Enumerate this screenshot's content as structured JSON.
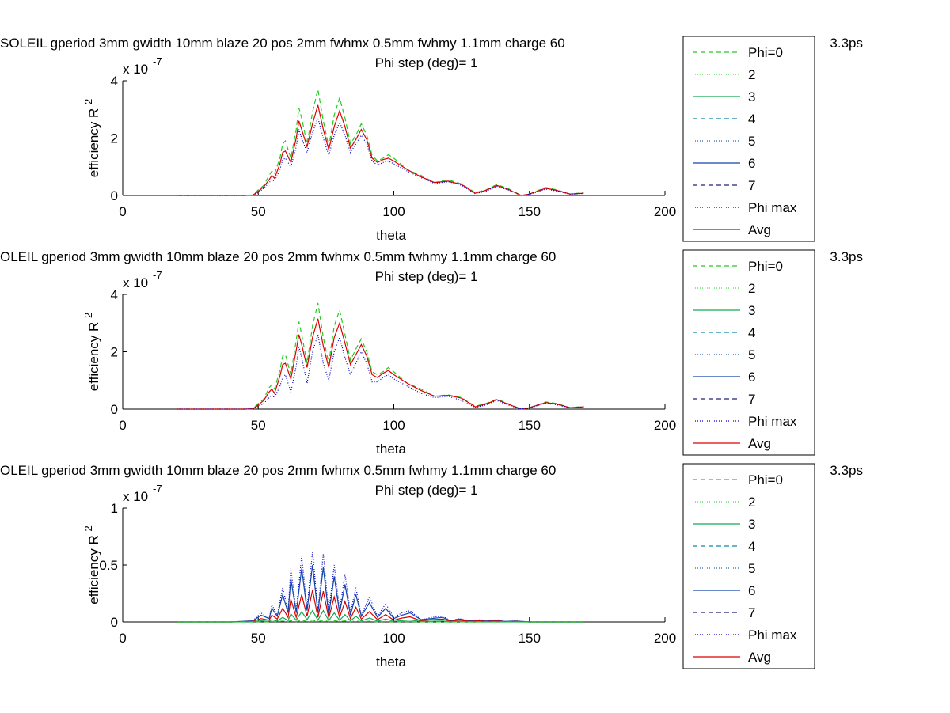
{
  "figure": {
    "background": "#ffffff",
    "series_styles": [
      {
        "name": "Phi=0",
        "color": "#22cc22",
        "dash": "6,4"
      },
      {
        "name": "2",
        "color": "#44dd44",
        "dash": "1,2"
      },
      {
        "name": "3",
        "color": "#11aa55",
        "dash": ""
      },
      {
        "name": "4",
        "color": "#1188aa",
        "dash": "6,4"
      },
      {
        "name": "5",
        "color": "#2266bb",
        "dash": "1,2"
      },
      {
        "name": "6",
        "color": "#1144aa",
        "dash": ""
      },
      {
        "name": "7",
        "color": "#222277",
        "dash": "6,4"
      },
      {
        "name": "Phi max",
        "color": "#0000cc",
        "dash": "1,2"
      },
      {
        "name": "Avg",
        "color": "#dd0000",
        "dash": ""
      }
    ]
  },
  "chart_data": [
    {
      "type": "line",
      "title": "SOLEIL gperiod 3mm gwidth 10mm blaze 20 pos 2mm fwhmx 0.5mm fwhmy 1.1mm charge 60",
      "title_tail": "3.3ps",
      "subtitle": "Phi step (deg)= 1",
      "xlabel": "theta",
      "ylabel": "efficiency R",
      "ylabel_sup": "2",
      "multiplier": "x 10",
      "multiplier_exp": "-7",
      "xlim": [
        0,
        200
      ],
      "ylim": [
        0,
        4
      ],
      "xticks": [
        "0",
        "50",
        "100",
        "150",
        "200"
      ],
      "yticks": [
        "0",
        "2",
        "4"
      ],
      "ytick_values": [
        0,
        2,
        4
      ],
      "legend": [
        "Phi=0",
        "2",
        "3",
        "4",
        "5",
        "6",
        "7",
        "Phi max",
        "Avg"
      ],
      "legend_position": "right",
      "grid": false,
      "theta": [
        20,
        30,
        40,
        45,
        48,
        50,
        52,
        54,
        55,
        56,
        58,
        59,
        60,
        62,
        64,
        65,
        66,
        68,
        70,
        72,
        74,
        76,
        78,
        80,
        82,
        84,
        86,
        88,
        90,
        92,
        94,
        96,
        98,
        100,
        105,
        110,
        115,
        120,
        125,
        130,
        134,
        138,
        142,
        147,
        150,
        156,
        160,
        165,
        170
      ],
      "series": [
        {
          "name": "Phi=0",
          "values": [
            0,
            0,
            0,
            0,
            0.02,
            0.2,
            0.35,
            0.7,
            0.85,
            0.75,
            1.3,
            1.8,
            1.9,
            1.3,
            2.3,
            3.05,
            2.7,
            1.8,
            2.9,
            3.7,
            2.6,
            1.7,
            2.8,
            3.4,
            2.7,
            1.8,
            2.1,
            2.5,
            2.1,
            1.4,
            1.2,
            1.3,
            1.42,
            1.3,
            0.9,
            0.7,
            0.45,
            0.55,
            0.4,
            0.1,
            0.2,
            0.38,
            0.25,
            0,
            0.05,
            0.28,
            0.2,
            0.05,
            0.1
          ]
        },
        {
          "name": "Avg",
          "values": [
            0,
            0,
            0,
            0,
            0.01,
            0.15,
            0.3,
            0.55,
            0.7,
            0.6,
            1.1,
            1.5,
            1.55,
            1.15,
            2.0,
            2.6,
            2.3,
            1.7,
            2.5,
            3.15,
            2.3,
            1.6,
            2.4,
            2.95,
            2.4,
            1.65,
            1.95,
            2.3,
            1.95,
            1.3,
            1.15,
            1.25,
            1.3,
            1.2,
            0.9,
            0.65,
            0.45,
            0.5,
            0.38,
            0.08,
            0.18,
            0.35,
            0.22,
            0,
            0.05,
            0.25,
            0.18,
            0.05,
            0.08
          ]
        },
        {
          "name": "Phi max",
          "values": [
            0,
            0,
            0,
            0,
            0.01,
            0.1,
            0.25,
            0.45,
            0.55,
            0.5,
            0.9,
            1.25,
            1.3,
            1.0,
            1.7,
            2.3,
            2.0,
            1.5,
            2.2,
            2.7,
            2.0,
            1.4,
            2.1,
            2.55,
            2.1,
            1.5,
            1.8,
            2.1,
            1.8,
            1.2,
            1.05,
            1.15,
            1.2,
            1.1,
            0.85,
            0.62,
            0.42,
            0.48,
            0.35,
            0.06,
            0.15,
            0.32,
            0.2,
            0,
            0.04,
            0.22,
            0.16,
            0.04,
            0.07
          ]
        }
      ]
    },
    {
      "type": "line",
      "title": "OLEIL gperiod 3mm gwidth 10mm blaze 20 pos 2mm fwhmx 0.5mm fwhmy 1.1mm charge 60",
      "title_tail": "3.3ps",
      "subtitle": "Phi step (deg)= 1",
      "xlabel": "theta",
      "ylabel": "efficiency R",
      "ylabel_sup": "2",
      "multiplier": "x 10",
      "multiplier_exp": "-7",
      "xlim": [
        0,
        200
      ],
      "ylim": [
        0,
        4
      ],
      "xticks": [
        "0",
        "50",
        "100",
        "150",
        "200"
      ],
      "yticks": [
        "0",
        "2",
        "4"
      ],
      "ytick_values": [
        0,
        2,
        4
      ],
      "legend": [
        "Phi=0",
        "2",
        "3",
        "4",
        "5",
        "6",
        "7",
        "Phi max",
        "Avg"
      ],
      "legend_position": "right",
      "grid": false,
      "theta": [
        20,
        30,
        40,
        45,
        48,
        50,
        52,
        54,
        55,
        56,
        58,
        59,
        60,
        62,
        64,
        65,
        66,
        68,
        70,
        72,
        74,
        76,
        78,
        80,
        82,
        84,
        86,
        88,
        90,
        92,
        94,
        96,
        98,
        100,
        105,
        110,
        115,
        120,
        125,
        130,
        134,
        138,
        142,
        147,
        150,
        156,
        160,
        165,
        170
      ],
      "series": [
        {
          "name": "Phi=0",
          "values": [
            0,
            0,
            0,
            0,
            0.02,
            0.2,
            0.35,
            0.75,
            0.85,
            0.7,
            1.35,
            1.85,
            1.9,
            1.2,
            2.4,
            3.05,
            2.6,
            1.6,
            2.9,
            3.7,
            2.5,
            1.6,
            2.9,
            3.45,
            2.6,
            1.7,
            2.1,
            2.45,
            2.0,
            1.3,
            1.2,
            1.3,
            1.45,
            1.3,
            0.9,
            0.7,
            0.45,
            0.5,
            0.4,
            0.1,
            0.2,
            0.35,
            0.2,
            0,
            0.05,
            0.25,
            0.2,
            0.05,
            0.1
          ]
        },
        {
          "name": "Avg",
          "values": [
            0,
            0,
            0,
            0,
            0.01,
            0.15,
            0.3,
            0.6,
            0.7,
            0.55,
            1.15,
            1.55,
            1.6,
            1.05,
            2.05,
            2.6,
            2.25,
            1.45,
            2.5,
            3.15,
            2.2,
            1.45,
            2.5,
            3.0,
            2.3,
            1.55,
            1.9,
            2.25,
            1.85,
            1.2,
            1.1,
            1.25,
            1.35,
            1.2,
            0.9,
            0.65,
            0.45,
            0.48,
            0.38,
            0.08,
            0.18,
            0.33,
            0.18,
            0,
            0.05,
            0.23,
            0.18,
            0.05,
            0.08
          ]
        },
        {
          "name": "Phi max",
          "values": [
            0,
            0,
            0,
            0,
            0.01,
            0.1,
            0.2,
            0.4,
            0.5,
            0.4,
            0.8,
            1.1,
            1.2,
            0.6,
            1.5,
            2.2,
            1.8,
            0.9,
            2.0,
            2.6,
            1.6,
            1.0,
            2.0,
            2.5,
            1.8,
            1.2,
            1.6,
            2.0,
            1.6,
            0.95,
            0.95,
            1.1,
            1.2,
            1.05,
            0.8,
            0.55,
            0.4,
            0.45,
            0.3,
            0.05,
            0.15,
            0.3,
            0.15,
            0,
            0.04,
            0.2,
            0.15,
            0.04,
            0.07
          ]
        }
      ]
    },
    {
      "type": "line",
      "title": "OLEIL gperiod 3mm gwidth 10mm blaze 20 pos 2mm fwhmx 0.5mm fwhmy 1.1mm charge 60",
      "title_tail": "3.3ps",
      "subtitle": "Phi step (deg)= 1",
      "xlabel": "theta",
      "ylabel": "efficiency R",
      "ylabel_sup": "2",
      "multiplier": "x 10",
      "multiplier_exp": "-7",
      "xlim": [
        0,
        200
      ],
      "ylim": [
        0,
        1
      ],
      "xticks": [
        "0",
        "50",
        "100",
        "150",
        "200"
      ],
      "yticks": [
        "0",
        "0.5",
        "1"
      ],
      "ytick_values": [
        0,
        0.5,
        1
      ],
      "legend": [
        "Phi=0",
        "2",
        "3",
        "4",
        "5",
        "6",
        "7",
        "Phi max",
        "Avg"
      ],
      "legend_position": "right",
      "grid": false,
      "theta": [
        20,
        40,
        48,
        51,
        54,
        55,
        57,
        59,
        61,
        62,
        64,
        66,
        68,
        70,
        72,
        74,
        76,
        78,
        80,
        82,
        84,
        86,
        88,
        91,
        94,
        97,
        100,
        103,
        106,
        110,
        114,
        118,
        121,
        124,
        128,
        131,
        134,
        138,
        141,
        145,
        150,
        160,
        170
      ],
      "series": [
        {
          "name": "Phi max",
          "values": [
            0,
            0,
            0.01,
            0.08,
            0.03,
            0.15,
            0.06,
            0.3,
            0.1,
            0.47,
            0.1,
            0.58,
            0.12,
            0.62,
            0.1,
            0.6,
            0.08,
            0.5,
            0.1,
            0.42,
            0.08,
            0.3,
            0.06,
            0.22,
            0.05,
            0.16,
            0.04,
            0.08,
            0.1,
            0.02,
            0.04,
            0.05,
            0.01,
            0.03,
            0.01,
            0.02,
            0.01,
            0.02,
            0.005,
            0.01,
            0,
            0,
            0
          ]
        },
        {
          "name": "6",
          "values": [
            0,
            0,
            0.01,
            0.06,
            0.03,
            0.12,
            0.05,
            0.24,
            0.08,
            0.38,
            0.08,
            0.47,
            0.1,
            0.5,
            0.08,
            0.48,
            0.06,
            0.4,
            0.08,
            0.33,
            0.06,
            0.24,
            0.05,
            0.17,
            0.04,
            0.12,
            0.03,
            0.06,
            0.08,
            0.02,
            0.03,
            0.04,
            0.01,
            0.025,
            0.01,
            0.015,
            0.008,
            0.015,
            0.004,
            0.008,
            0,
            0,
            0
          ]
        },
        {
          "name": "Avg",
          "values": [
            0,
            0,
            0.005,
            0.03,
            0.015,
            0.06,
            0.025,
            0.12,
            0.04,
            0.2,
            0.04,
            0.24,
            0.05,
            0.28,
            0.04,
            0.27,
            0.035,
            0.22,
            0.04,
            0.18,
            0.03,
            0.13,
            0.025,
            0.09,
            0.02,
            0.065,
            0.015,
            0.035,
            0.045,
            0.01,
            0.02,
            0.025,
            0.005,
            0.015,
            0.005,
            0.01,
            0.004,
            0.008,
            0.002,
            0.004,
            0,
            0,
            0
          ]
        },
        {
          "name": "3",
          "values": [
            0,
            0,
            0.002,
            0.01,
            0.005,
            0.02,
            0.008,
            0.04,
            0.012,
            0.07,
            0.015,
            0.09,
            0.02,
            0.1,
            0.015,
            0.1,
            0.012,
            0.08,
            0.014,
            0.065,
            0.01,
            0.05,
            0.008,
            0.035,
            0.006,
            0.025,
            0.005,
            0.012,
            0.016,
            0.004,
            0.006,
            0.008,
            0.002,
            0.005,
            0.002,
            0.003,
            0.001,
            0.003,
            0.001,
            0.001,
            0,
            0,
            0
          ]
        },
        {
          "name": "Phi=0",
          "values": [
            0,
            0,
            0,
            0.002,
            0.001,
            0.004,
            0.002,
            0.008,
            0.003,
            0.012,
            0.003,
            0.015,
            0.004,
            0.016,
            0.003,
            0.015,
            0.003,
            0.012,
            0.003,
            0.01,
            0.002,
            0.008,
            0.002,
            0.006,
            0.001,
            0.004,
            0.001,
            0.002,
            0.003,
            0.001,
            0.001,
            0.001,
            0,
            0.001,
            0,
            0,
            0,
            0,
            0,
            0,
            0,
            0,
            0
          ]
        }
      ]
    }
  ]
}
